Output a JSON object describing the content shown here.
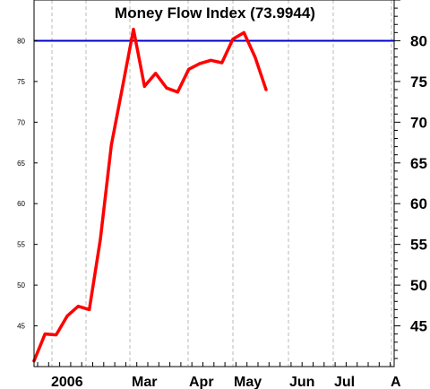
{
  "chart_data": {
    "type": "line",
    "title": "Money Flow Index (73.9944)",
    "xlabel": "",
    "ylabel": "",
    "x_ticks": [
      "2006",
      "Mar",
      "Apr",
      "May",
      "Jun",
      "Jul",
      "A"
    ],
    "y_ticks_left": [
      45,
      50,
      55,
      60,
      65,
      70,
      75,
      80
    ],
    "y_ticks_right": [
      45,
      50,
      55,
      60,
      65,
      70,
      75,
      80
    ],
    "ylim": [
      40,
      85
    ],
    "reference_line": {
      "value": 80,
      "color": "#0000cc"
    },
    "grid": true,
    "series": [
      {
        "color": "#ff0000",
        "values": [
          40.7,
          44.0,
          43.9,
          46.2,
          47.4,
          47.0,
          55.6,
          67.2,
          74.3,
          81.4,
          74.4,
          76.0,
          74.2,
          73.7,
          76.5,
          77.2,
          77.6,
          77.3,
          80.2,
          81.0,
          78.0,
          74.0
        ]
      }
    ]
  }
}
